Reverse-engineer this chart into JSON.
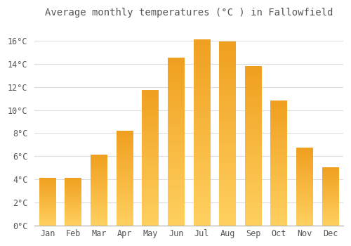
{
  "title": "Average monthly temperatures (°C ) in Fallowfield",
  "months": [
    "Jan",
    "Feb",
    "Mar",
    "Apr",
    "May",
    "Jun",
    "Jul",
    "Aug",
    "Sep",
    "Oct",
    "Nov",
    "Dec"
  ],
  "values": [
    4.1,
    4.1,
    6.1,
    8.2,
    11.7,
    14.5,
    16.1,
    15.9,
    13.8,
    10.8,
    6.7,
    5.0
  ],
  "bar_color_dark": "#F0A020",
  "bar_color_light": "#FFD060",
  "background_color": "#FFFFFF",
  "grid_color": "#DDDDDD",
  "text_color": "#555555",
  "ylim": [
    0,
    17.5
  ],
  "yticks": [
    0,
    2,
    4,
    6,
    8,
    10,
    12,
    14,
    16
  ],
  "title_fontsize": 10,
  "tick_fontsize": 8.5
}
